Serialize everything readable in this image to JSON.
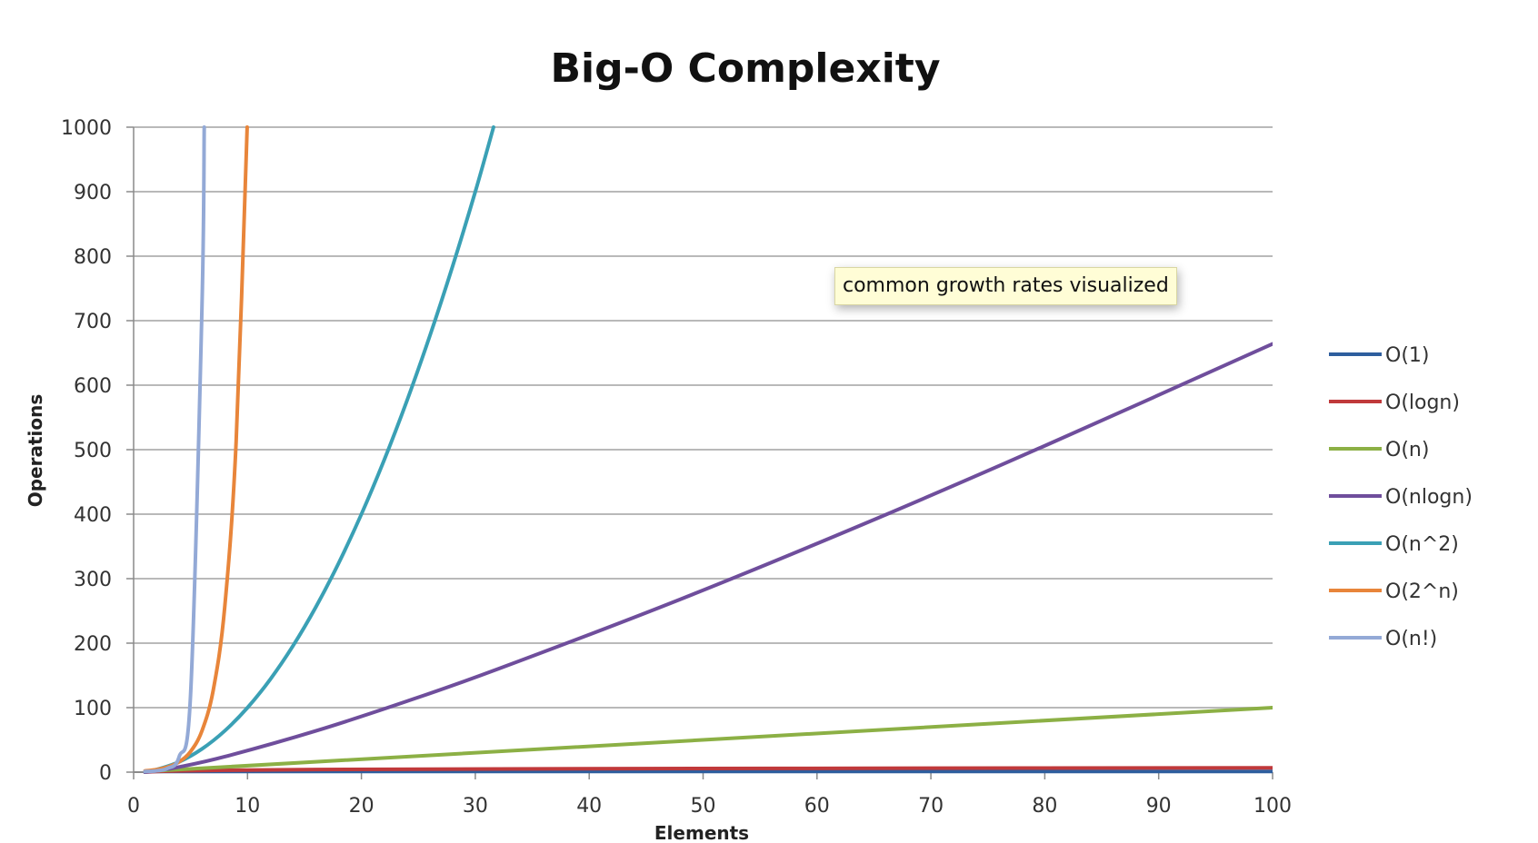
{
  "tooltip": {
    "text": "common growth rates visualized"
  },
  "chart_data": {
    "type": "line",
    "title": "Big-O Complexity",
    "xlabel": "Elements",
    "ylabel": "Operations",
    "xlim": [
      0,
      100
    ],
    "ylim": [
      0,
      1000
    ],
    "xticks": [
      0,
      10,
      20,
      30,
      40,
      50,
      60,
      70,
      80,
      90,
      100
    ],
    "yticks": [
      0,
      100,
      200,
      300,
      400,
      500,
      600,
      700,
      800,
      900,
      1000
    ],
    "grid": true,
    "legend_position": "right",
    "series": [
      {
        "name": "O(1)",
        "color": "#2e5e9e",
        "x": [
          1,
          100
        ],
        "y": [
          1,
          1
        ]
      },
      {
        "name": "O(logn)",
        "color": "#c0393b",
        "x": [
          1,
          2,
          4,
          8,
          16,
          32,
          64,
          100
        ],
        "y": [
          0,
          1,
          2,
          3,
          4,
          5,
          6,
          6.64
        ]
      },
      {
        "name": "O(n)",
        "color": "#8cb045",
        "x": [
          1,
          100
        ],
        "y": [
          1,
          100
        ]
      },
      {
        "name": "O(nlogn)",
        "color": "#6f4e9c",
        "x": [
          1,
          2,
          4,
          8,
          16,
          24,
          32,
          48,
          64,
          80,
          100
        ],
        "y": [
          0,
          2,
          8,
          24,
          64,
          110,
          160,
          268,
          384,
          506,
          664
        ]
      },
      {
        "name": "O(n^2)",
        "color": "#3aa0b5",
        "x": [
          1,
          2,
          4,
          6,
          8,
          10,
          12,
          14,
          16,
          18,
          20,
          22,
          24,
          26,
          28,
          30,
          31.6
        ],
        "y": [
          1,
          4,
          16,
          36,
          64,
          100,
          144,
          196,
          256,
          324,
          400,
          484,
          576,
          676,
          784,
          900,
          1000
        ]
      },
      {
        "name": "O(2^n)",
        "color": "#e8853a",
        "x": [
          1,
          2,
          3,
          4,
          5,
          6,
          7,
          8,
          9,
          9.97
        ],
        "y": [
          2,
          4,
          8,
          16,
          32,
          64,
          128,
          256,
          512,
          1000
        ]
      },
      {
        "name": "O(n!)",
        "color": "#93a9d6",
        "x": [
          1,
          2,
          3,
          4,
          5,
          6,
          6.2
        ],
        "y": [
          1,
          2,
          6,
          24,
          120,
          720,
          1000
        ]
      }
    ]
  }
}
